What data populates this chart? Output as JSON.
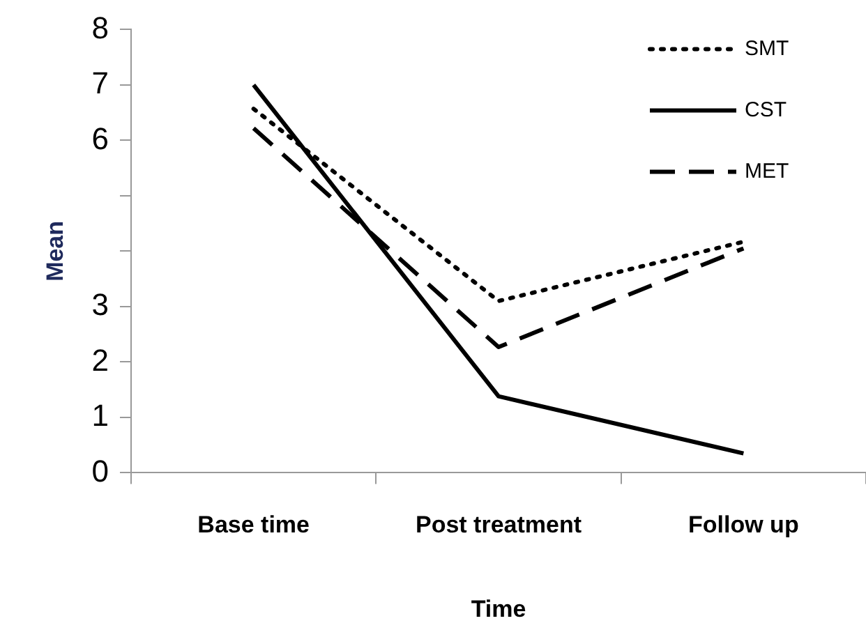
{
  "chart_data": {
    "type": "line",
    "xlabel": "Time",
    "ylabel": "Mean",
    "categories": [
      "Base time",
      "Post treatment",
      "Follow up"
    ],
    "ylim": [
      0,
      8
    ],
    "yticks": [
      0,
      1,
      2,
      3,
      {
        "value": 4,
        "label": null
      },
      {
        "value": 5,
        "label": null
      },
      6,
      7,
      8
    ],
    "legend": "top right",
    "grid": false,
    "marker": "none",
    "series": [
      {
        "name": "SMT",
        "color": "#000000",
        "line_style": "dotted",
        "values": [
          6.57,
          3.1,
          4.17
        ]
      },
      {
        "name": "CST",
        "color": "#000000",
        "line_style": "solid",
        "values": [
          7.0,
          1.38,
          0.35
        ]
      },
      {
        "name": "MET",
        "color": "#000000",
        "line_style": "dashed",
        "values": [
          6.22,
          2.27,
          4.05
        ]
      }
    ]
  }
}
